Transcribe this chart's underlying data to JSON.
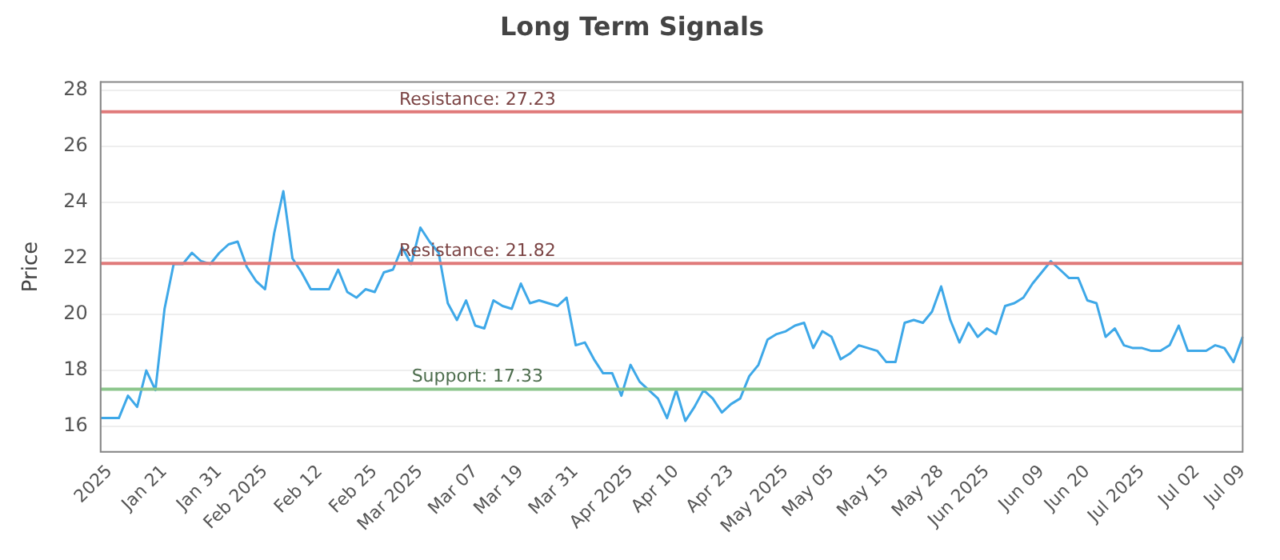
{
  "chart_data": {
    "type": "line",
    "title": "Long Term Signals",
    "ylabel": "Price",
    "categories": [
      null,
      "2025",
      null,
      null,
      null,
      null,
      null,
      "Jan 21",
      null,
      null,
      null,
      null,
      null,
      "Jan 31",
      null,
      null,
      null,
      null,
      "Feb 2025",
      null,
      null,
      null,
      null,
      null,
      "Feb 12",
      null,
      null,
      null,
      null,
      null,
      "Feb 25",
      null,
      null,
      null,
      null,
      "Mar 2025",
      null,
      null,
      null,
      null,
      null,
      "Mar 07",
      null,
      null,
      null,
      null,
      "Mar 19",
      null,
      null,
      null,
      null,
      null,
      "Mar 31",
      null,
      null,
      null,
      null,
      null,
      "Apr 2025",
      null,
      null,
      null,
      null,
      "Apr 10",
      null,
      null,
      null,
      null,
      null,
      "Apr 23",
      null,
      null,
      null,
      null,
      null,
      "May 2025",
      null,
      null,
      null,
      null,
      "May 05",
      null,
      null,
      null,
      null,
      null,
      "May 15",
      null,
      null,
      null,
      null,
      null,
      "May 28",
      null,
      null,
      null,
      null,
      "Jun 2025",
      null,
      null,
      null,
      null,
      null,
      "Jun 09",
      null,
      null,
      null,
      null,
      "Jun 20",
      null,
      null,
      null,
      null,
      null,
      "Jul 2025",
      null,
      null,
      null,
      null,
      null,
      "Jul 02",
      null,
      null,
      null,
      null,
      "Jul 09"
    ],
    "series": [
      {
        "color": "#3ea8e8",
        "values": [
          16.3,
          16.3,
          16.3,
          17.1,
          16.7,
          18.0,
          17.3,
          20.2,
          21.8,
          21.8,
          22.2,
          21.9,
          21.8,
          22.2,
          22.5,
          22.6,
          21.7,
          21.2,
          20.9,
          22.9,
          24.4,
          22.0,
          21.5,
          20.9,
          20.9,
          20.9,
          21.6,
          20.8,
          20.6,
          20.9,
          20.8,
          21.5,
          21.6,
          22.4,
          21.8,
          23.1,
          22.6,
          22.2,
          20.4,
          19.8,
          20.5,
          19.6,
          19.5,
          20.5,
          20.3,
          20.2,
          21.1,
          20.4,
          20.5,
          20.4,
          20.3,
          20.6,
          18.9,
          19.0,
          18.4,
          17.9,
          17.9,
          17.1,
          18.2,
          17.6,
          17.3,
          17.0,
          16.3,
          17.3,
          16.2,
          16.7,
          17.3,
          17.0,
          16.5,
          16.8,
          17.0,
          17.8,
          18.2,
          19.1,
          19.3,
          19.4,
          19.6,
          19.7,
          18.8,
          19.4,
          19.2,
          18.4,
          18.6,
          18.9,
          18.8,
          18.7,
          18.3,
          18.3,
          19.7,
          19.8,
          19.7,
          20.1,
          21.0,
          19.8,
          19.0,
          19.7,
          19.2,
          19.5,
          19.3,
          20.3,
          20.4,
          20.6,
          21.1,
          21.5,
          21.9,
          21.6,
          21.3,
          21.3,
          20.5,
          20.4,
          19.2,
          19.5,
          18.9,
          18.8,
          18.8,
          18.7,
          18.7,
          18.9,
          19.6,
          18.7,
          18.7,
          18.7,
          18.9,
          18.8,
          18.3,
          19.2
        ]
      }
    ],
    "ylim": [
      15.1,
      28.3
    ],
    "yticks": [
      16,
      18,
      20,
      22,
      24,
      26,
      28
    ],
    "grid": "y",
    "legend": false,
    "marker": "none",
    "line_style": "solid",
    "ref_lines": [
      {
        "axis": "y",
        "value": 27.23,
        "label": "Resistance: 27.23",
        "color": "#e07a7a"
      },
      {
        "axis": "y",
        "value": 21.82,
        "label": "Resistance: 21.82",
        "color": "#e07a7a"
      },
      {
        "axis": "y",
        "value": 17.33,
        "label": "Support: 17.33",
        "color": "#8cc68c"
      }
    ]
  }
}
